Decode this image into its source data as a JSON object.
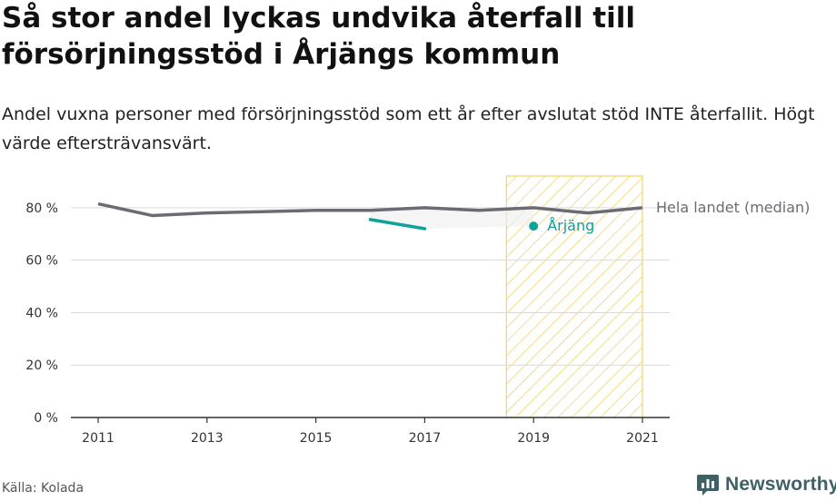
{
  "title": "Så stor andel lyckas undvika återfall till försörjningsstöd i Årjängs kommun",
  "subtitle": "Andel vuxna personer med försörjningsstöd som ett år efter avslutat stöd INTE återfallit. Högt värde eftersträvansvärt.",
  "source": "Källa: Kolada",
  "brand": "Newsworthy",
  "colors": {
    "national": "#6b6b73",
    "local": "#0fa29a",
    "highlight": "#f2c94c",
    "grid": "#d9d9d9",
    "band": "#eeeeee"
  },
  "chart_data": {
    "type": "line",
    "ylim": [
      0,
      90
    ],
    "xlim": [
      2010.5,
      2021.5
    ],
    "yticks": [
      {
        "value": 0,
        "label": "0 %"
      },
      {
        "value": 20,
        "label": "20 %"
      },
      {
        "value": 40,
        "label": "40 %"
      },
      {
        "value": 60,
        "label": "60 %"
      },
      {
        "value": 80,
        "label": "80 %"
      }
    ],
    "xticks": [
      {
        "value": 2011,
        "label": "2011"
      },
      {
        "value": 2013,
        "label": "2013"
      },
      {
        "value": 2015,
        "label": "2015"
      },
      {
        "value": 2017,
        "label": "2017"
      },
      {
        "value": 2019,
        "label": "2019"
      },
      {
        "value": 2021,
        "label": "2021"
      }
    ],
    "highlight_range": [
      2018.5,
      2021
    ],
    "series": [
      {
        "name": "Hela landet (median)",
        "x": [
          2011,
          2012,
          2013,
          2014,
          2015,
          2016,
          2017,
          2018,
          2019,
          2020,
          2021
        ],
        "values": [
          81.5,
          77,
          78,
          78.5,
          79,
          79,
          80,
          79,
          80,
          78,
          80
        ]
      },
      {
        "name": "Årjäng",
        "x": [
          2016,
          2017,
          2019
        ],
        "values": [
          75.5,
          72,
          73
        ]
      }
    ]
  }
}
